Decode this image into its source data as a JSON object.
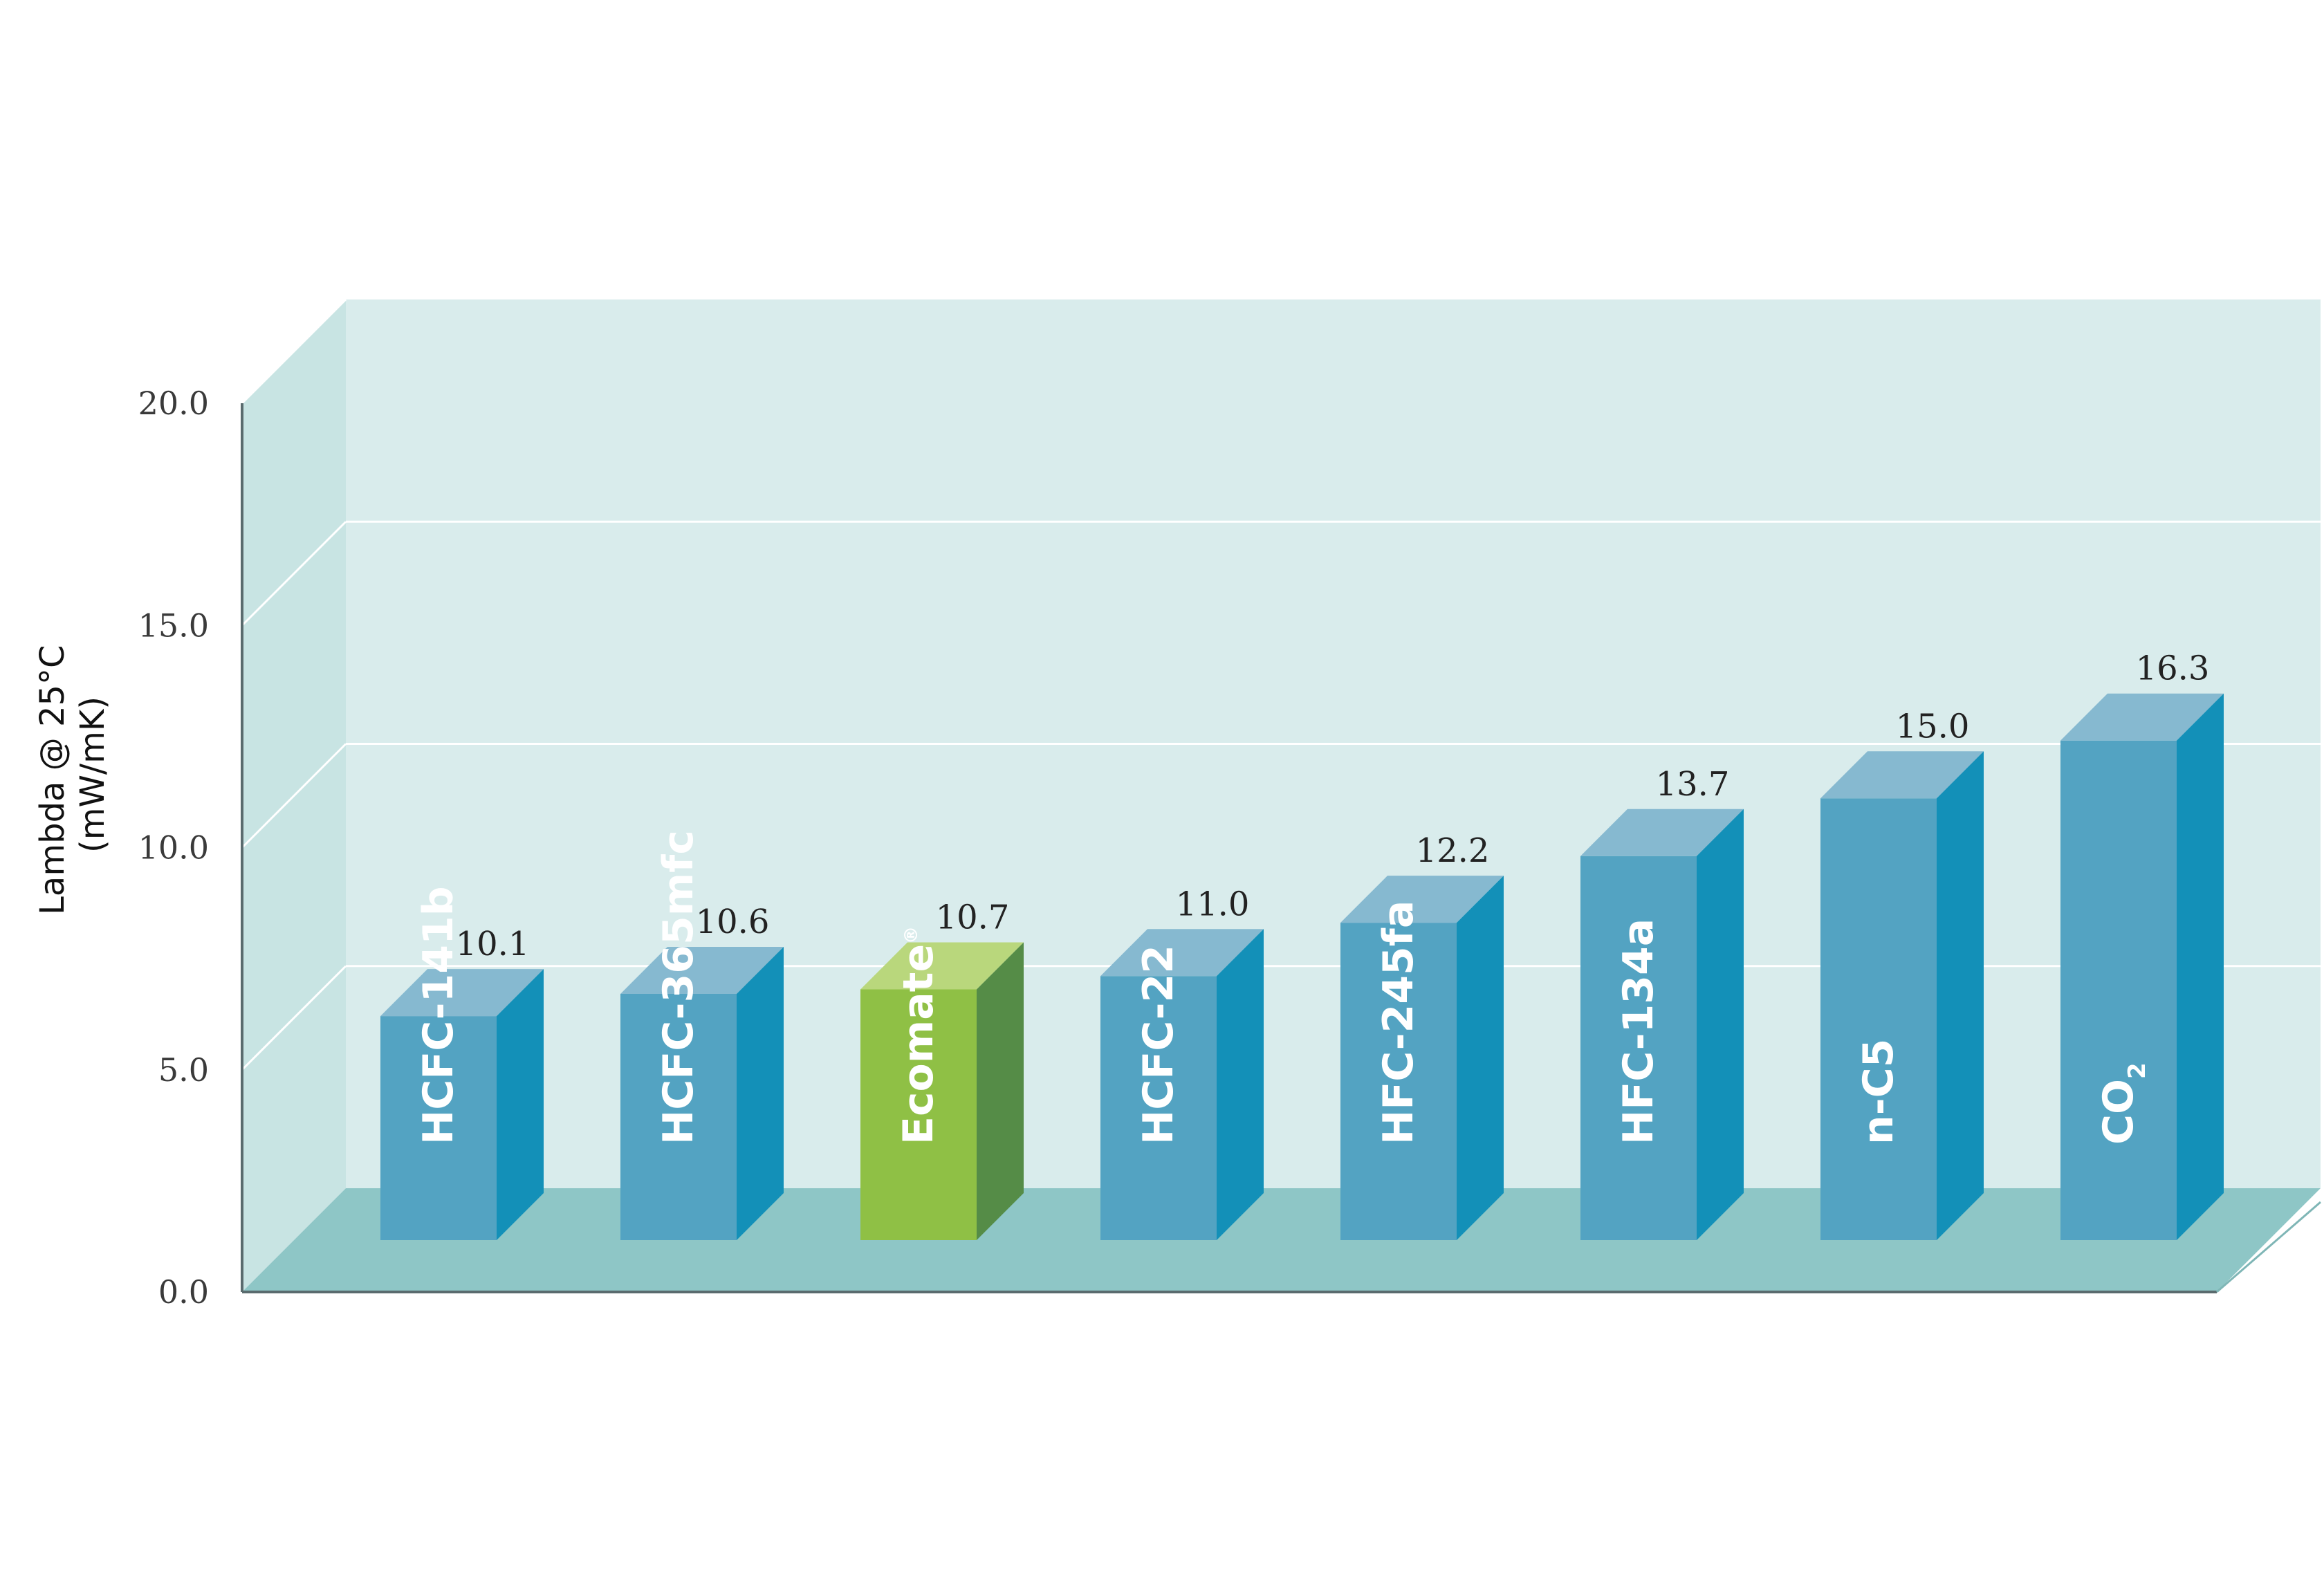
{
  "chart_data": {
    "type": "bar",
    "title": "",
    "ylabel_line1": "Lambda @ 25°C",
    "ylabel_line2": "(mW/mK)",
    "xlabel": "",
    "ylim": [
      0,
      20
    ],
    "yticks": [
      {
        "value": 0,
        "label": "0.0"
      },
      {
        "value": 5,
        "label": "5.0"
      },
      {
        "value": 10,
        "label": "10.0"
      },
      {
        "value": 15,
        "label": "15.0"
      },
      {
        "value": 20,
        "label": "20.0"
      }
    ],
    "grid": true,
    "categories": [
      {
        "label": "HCFC-141b",
        "sup": "",
        "sub": ""
      },
      {
        "label": "HCFC-365mfc",
        "sup": "",
        "sub": ""
      },
      {
        "label": "Ecomate",
        "sup": "®",
        "sub": ""
      },
      {
        "label": "HCFC-22",
        "sup": "",
        "sub": ""
      },
      {
        "label": "HFC-245fa",
        "sup": "",
        "sub": ""
      },
      {
        "label": "HFC-134a",
        "sup": "",
        "sub": ""
      },
      {
        "label": "n-C5",
        "sup": "",
        "sub": ""
      },
      {
        "label": "CO",
        "sup": "",
        "sub": "2"
      }
    ],
    "values": [
      10.1,
      10.6,
      10.7,
      11.0,
      12.2,
      13.7,
      15.0,
      16.3
    ],
    "value_labels": [
      "10.1",
      "10.6",
      "10.7",
      "11.0",
      "12.2",
      "13.7",
      "15.0",
      "16.3"
    ],
    "highlight_index": 2,
    "colors": {
      "bar_front": "#53a3c2",
      "bar_top": "#86b9d0",
      "bar_side": "#1390b8",
      "highlight_front": "#8fc045",
      "highlight_top": "#b9d77c",
      "highlight_side": "#558c47",
      "back_wall": "#d9ecec",
      "side_wall": "#c8e4e3",
      "floor": "#8ec6c6",
      "grid": "#ffffff",
      "axis": "#5a6b6e"
    }
  }
}
